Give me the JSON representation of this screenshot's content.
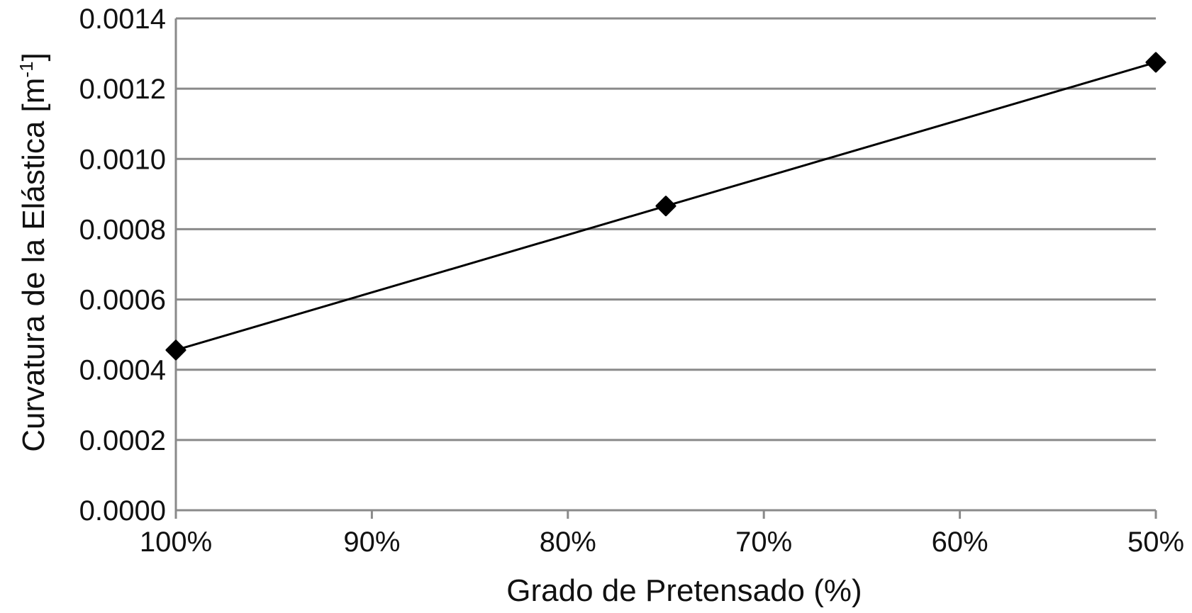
{
  "chart_data": {
    "type": "line",
    "title": "",
    "xlabel": "Grado de Pretensado (%)",
    "ylabel_main": "Curvatura de la Elástica [m",
    "ylabel_sup": "-1",
    "ylabel_close": "]",
    "x_reversed": true,
    "xlim": [
      100,
      50
    ],
    "x_ticks": [
      100,
      90,
      80,
      70,
      60,
      50
    ],
    "x_tick_labels": [
      "100%",
      "90%",
      "80%",
      "70%",
      "60%",
      "50%"
    ],
    "ylim": [
      0,
      0.0014
    ],
    "y_ticks": [
      0,
      0.0002,
      0.0004,
      0.0006,
      0.0008,
      0.001,
      0.0012,
      0.0014
    ],
    "y_tick_labels": [
      "0.0000",
      "0.0002",
      "0.0004",
      "0.0006",
      "0.0008",
      "0.0010",
      "0.0012",
      "0.0014"
    ],
    "grid": "horizontal",
    "legend": "none",
    "series": [
      {
        "marker": "diamond",
        "color": "#000000",
        "x": [
          100,
          75,
          50
        ],
        "y": [
          0.000456,
          0.000866,
          0.001275
        ]
      }
    ],
    "colors": {
      "grid": "#8a8a8a",
      "axis": "#8a8a8a",
      "line": "#000000",
      "marker_fill": "#000000"
    }
  }
}
